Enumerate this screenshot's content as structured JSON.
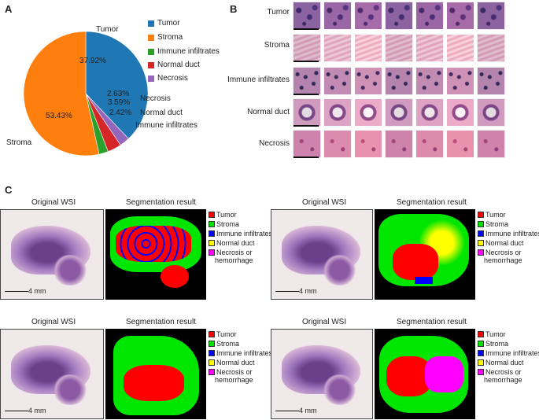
{
  "panels": {
    "a": "A",
    "b": "B",
    "c": "C"
  },
  "colors": {
    "tumor": "#1f77b4",
    "stroma": "#ff7f0e",
    "immune": "#2ca02c",
    "normal_duct": "#d62728",
    "necrosis": "#9467bd",
    "seg_tumor": "#ff0000",
    "seg_stroma": "#00e600",
    "seg_immune": "#0000ff",
    "seg_duct": "#ffff00",
    "seg_necrosis": "#ff00ff"
  },
  "chart_data": {
    "type": "pie",
    "categories": [
      "Tumor",
      "Stroma",
      "Immune infiltrates",
      "Normal duct",
      "Necrosis"
    ],
    "values": [
      37.92,
      53.43,
      2.42,
      3.59,
      2.63
    ],
    "value_labels": [
      "37.92%",
      "53.43%",
      "2.42%",
      "3.59%",
      "2.63%"
    ],
    "legend": [
      "Tumor",
      "Stroma",
      "Immune infiltrates",
      "Normal duct",
      "Necrosis"
    ],
    "legend_position": "top-right"
  },
  "pie_outer_labels": {
    "tumor": "Tumor",
    "stroma": "Stroma",
    "necrosis": "Necrosis",
    "duct": "Normal duct",
    "immune": "Immune infiltrates"
  },
  "panel_b": {
    "rows": [
      "Tumor",
      "Stroma",
      "Immune infiltrates",
      "Normal duct",
      "Necrosis"
    ]
  },
  "panel_c": {
    "orig_title": "Original WSI",
    "seg_title": "Segmentation result",
    "scale": "4 mm",
    "legend": [
      "Tumor",
      "Stroma",
      "Immune infiltrates",
      "Normal duct",
      "Necrosis or",
      "hemorrhage"
    ]
  }
}
